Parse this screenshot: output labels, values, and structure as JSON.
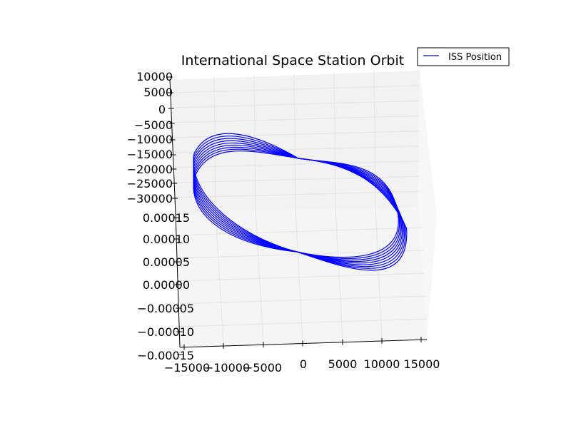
{
  "chart_data": {
    "type": "line",
    "projection": "3d",
    "title": "International Space Station Orbit",
    "xlabel": "",
    "ylabel": "",
    "zlabel": "",
    "legend": {
      "entries": [
        "ISS Position"
      ],
      "placement": "top-right"
    },
    "grid": true,
    "x_ticks": [
      "−15000",
      "−10000",
      "−5000",
      "0",
      "5000",
      "10000",
      "15000"
    ],
    "y_ticks": [
      "−0.00015",
      "−0.00010",
      "−0.00005",
      "0.00000",
      "0.00005",
      "0.00010",
      "0.00015"
    ],
    "z_ticks": [
      "−30000",
      "−25000",
      "−20000",
      "−15000",
      "−10000",
      "−5000",
      "0",
      "5000",
      "10000"
    ],
    "xlim": [
      -15000,
      15000
    ],
    "ylim": [
      -0.00015,
      0.00015
    ],
    "series": [
      {
        "name": "ISS Position",
        "color": "#0000ff",
        "orbit_count": 9,
        "shape": "nested inclined ellipses crossing at two nodes"
      }
    ]
  }
}
